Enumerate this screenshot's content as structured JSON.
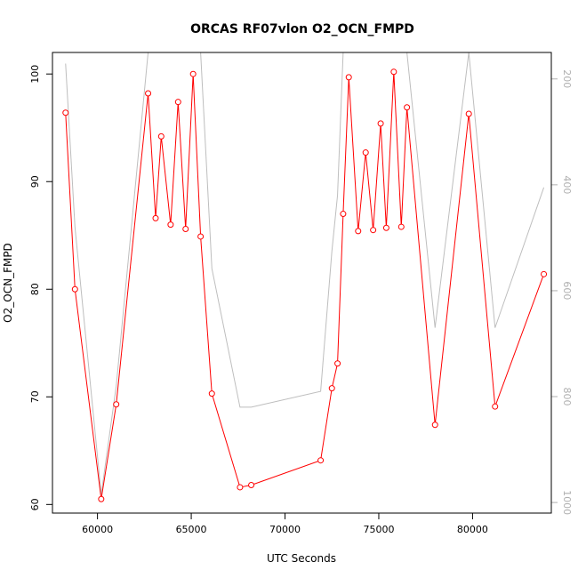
{
  "chart_data": {
    "type": "line",
    "title": "ORCAS RF07vlon O2_OCN_FMPD",
    "xlabel": "UTC Seconds",
    "ylabel": "O2_OCN_FMPD",
    "xlim": [
      57600,
      84200
    ],
    "ylim": [
      59.2,
      102
    ],
    "y2lim": [
      1020,
      150
    ],
    "x_ticks": [
      60000,
      65000,
      70000,
      75000,
      80000
    ],
    "y_ticks": [
      60,
      70,
      80,
      90,
      100
    ],
    "y2_ticks": [
      200,
      400,
      600,
      800,
      1000
    ],
    "colors": {
      "primary": "#ff0000",
      "secondary": "#bebebe"
    },
    "series": [
      {
        "values": [
          [
            58300,
            96.4
          ],
          [
            58800,
            80.0
          ],
          [
            60200,
            60.5
          ],
          [
            61000,
            69.3
          ],
          [
            62700,
            98.2
          ],
          [
            63100,
            86.6
          ],
          [
            63400,
            94.2
          ],
          [
            63900,
            86.0
          ],
          [
            64300,
            97.4
          ],
          [
            64700,
            85.6
          ],
          [
            65100,
            100.0
          ],
          [
            65500,
            84.9
          ],
          [
            66100,
            70.3
          ],
          [
            67600,
            61.6
          ],
          [
            68200,
            61.8
          ],
          [
            71900,
            64.1
          ],
          [
            72500,
            70.8
          ],
          [
            72800,
            73.1
          ],
          [
            73100,
            87.0
          ],
          [
            73400,
            99.7
          ],
          [
            73900,
            85.4
          ],
          [
            74300,
            92.7
          ],
          [
            74700,
            85.5
          ],
          [
            75100,
            95.4
          ],
          [
            75400,
            85.7
          ],
          [
            75800,
            100.2
          ],
          [
            76200,
            85.8
          ],
          [
            76500,
            96.9
          ],
          [
            78000,
            67.4
          ],
          [
            79800,
            96.3
          ],
          [
            81200,
            69.1
          ],
          [
            83800,
            81.4
          ]
        ]
      },
      {
        "axis": "right",
        "values": [
          [
            58300,
            171
          ],
          [
            58800,
            480
          ],
          [
            60200,
            985
          ],
          [
            61000,
            780
          ],
          [
            62700,
            150
          ],
          [
            63100,
            150
          ],
          [
            63400,
            150
          ],
          [
            63900,
            150
          ],
          [
            64300,
            150
          ],
          [
            64700,
            150
          ],
          [
            65100,
            150
          ],
          [
            65500,
            150
          ],
          [
            66100,
            558
          ],
          [
            67600,
            820
          ],
          [
            68200,
            820
          ],
          [
            71900,
            790
          ],
          [
            72500,
            525
          ],
          [
            72800,
            420
          ],
          [
            73100,
            150
          ],
          [
            73400,
            150
          ],
          [
            73900,
            150
          ],
          [
            74300,
            150
          ],
          [
            74700,
            150
          ],
          [
            75100,
            150
          ],
          [
            75400,
            150
          ],
          [
            75800,
            150
          ],
          [
            76200,
            150
          ],
          [
            76500,
            150
          ],
          [
            78000,
            670
          ],
          [
            79800,
            150
          ],
          [
            81200,
            670
          ],
          [
            83800,
            405
          ]
        ]
      }
    ]
  }
}
